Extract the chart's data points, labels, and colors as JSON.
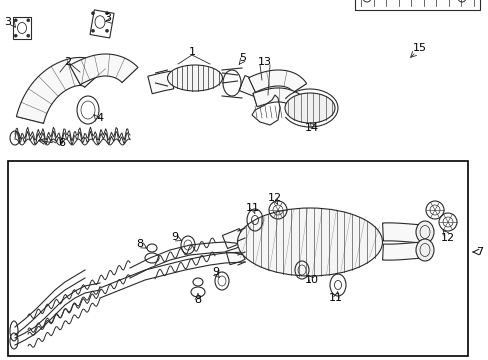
{
  "bg": "#ffffff",
  "lc": "#2a2a2a",
  "tc": "#000000",
  "fig_w": 4.89,
  "fig_h": 3.6,
  "dpi": 100
}
